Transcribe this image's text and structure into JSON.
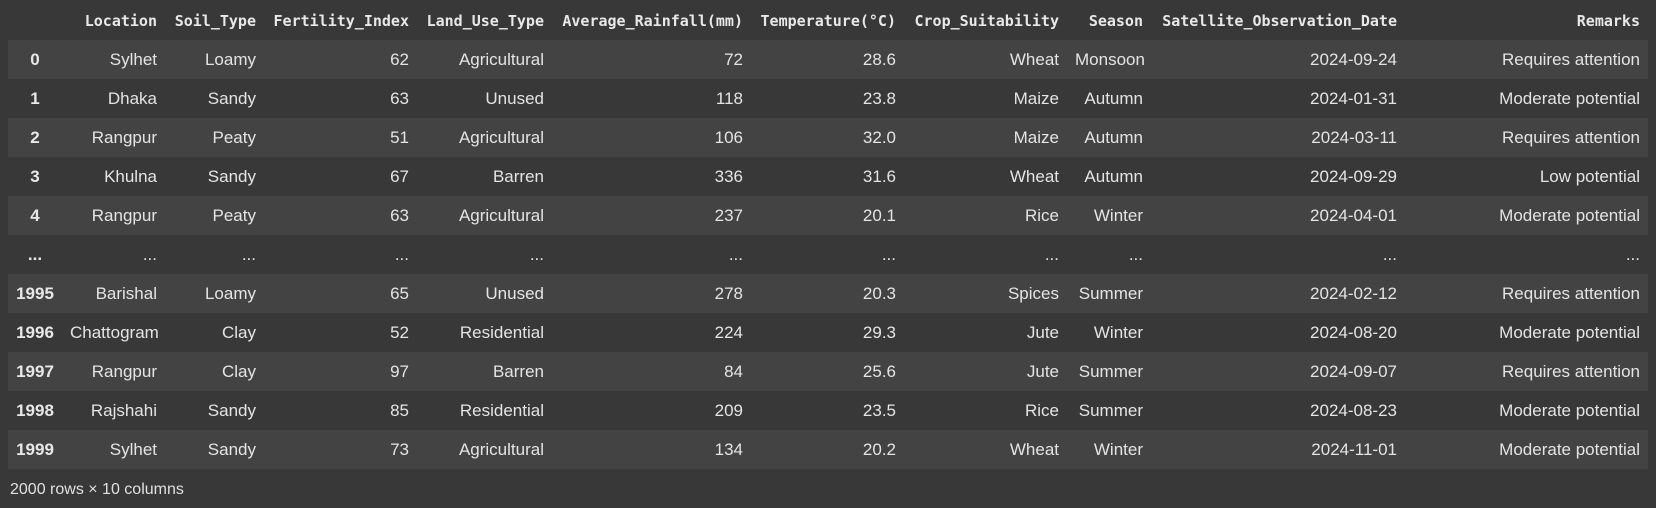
{
  "table": {
    "index_header": "",
    "columns": [
      "Location",
      "Soil_Type",
      "Fertility_Index",
      "Land_Use_Type",
      "Average_Rainfall(mm)",
      "Temperature(°C)",
      "Crop_Suitability",
      "Season",
      "Satellite_Observation_Date",
      "Remarks"
    ],
    "rows": [
      {
        "index": "0",
        "cells": [
          "Sylhet",
          "Loamy",
          "62",
          "Agricultural",
          "72",
          "28.6",
          "Wheat",
          "Monsoon",
          "2024-09-24",
          "Requires attention"
        ]
      },
      {
        "index": "1",
        "cells": [
          "Dhaka",
          "Sandy",
          "63",
          "Unused",
          "118",
          "23.8",
          "Maize",
          "Autumn",
          "2024-01-31",
          "Moderate potential"
        ]
      },
      {
        "index": "2",
        "cells": [
          "Rangpur",
          "Peaty",
          "51",
          "Agricultural",
          "106",
          "32.0",
          "Maize",
          "Autumn",
          "2024-03-11",
          "Requires attention"
        ]
      },
      {
        "index": "3",
        "cells": [
          "Khulna",
          "Sandy",
          "67",
          "Barren",
          "336",
          "31.6",
          "Wheat",
          "Autumn",
          "2024-09-29",
          "Low potential"
        ]
      },
      {
        "index": "4",
        "cells": [
          "Rangpur",
          "Peaty",
          "63",
          "Agricultural",
          "237",
          "20.1",
          "Rice",
          "Winter",
          "2024-04-01",
          "Moderate potential"
        ]
      },
      {
        "index": "...",
        "cells": [
          "...",
          "...",
          "...",
          "...",
          "...",
          "...",
          "...",
          "...",
          "...",
          "..."
        ]
      },
      {
        "index": "1995",
        "cells": [
          "Barishal",
          "Loamy",
          "65",
          "Unused",
          "278",
          "20.3",
          "Spices",
          "Summer",
          "2024-02-12",
          "Requires attention"
        ]
      },
      {
        "index": "1996",
        "cells": [
          "Chattogram",
          "Clay",
          "52",
          "Residential",
          "224",
          "29.3",
          "Jute",
          "Winter",
          "2024-08-20",
          "Moderate potential"
        ]
      },
      {
        "index": "1997",
        "cells": [
          "Rangpur",
          "Clay",
          "97",
          "Barren",
          "84",
          "25.6",
          "Jute",
          "Summer",
          "2024-09-07",
          "Requires attention"
        ]
      },
      {
        "index": "1998",
        "cells": [
          "Rajshahi",
          "Sandy",
          "85",
          "Residential",
          "209",
          "23.5",
          "Rice",
          "Summer",
          "2024-08-23",
          "Moderate potential"
        ]
      },
      {
        "index": "1999",
        "cells": [
          "Sylhet",
          "Sandy",
          "73",
          "Agricultural",
          "134",
          "20.2",
          "Wheat",
          "Winter",
          "2024-11-01",
          "Moderate potential"
        ]
      }
    ]
  },
  "footer": {
    "shape_text": "2000 rows × 10 columns"
  }
}
